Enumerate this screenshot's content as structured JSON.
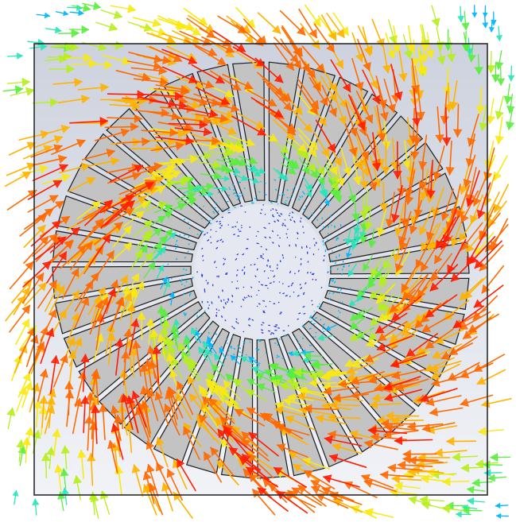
{
  "scene": {
    "description_visible_text": "",
    "domain_box": {
      "frame_stroke": "#2b2b2b",
      "gradient_top": "#cdd2de",
      "gradient_bottom": "#f1f3f7"
    },
    "hub": {
      "fill": "#e6e8f1",
      "dot_color": "#2b3fd8"
    },
    "blades": {
      "count": 36,
      "fill": "#c3c3c3",
      "stroke": "#1e1e1e"
    },
    "vector_color_scale": [
      "#0b30ff",
      "#00b7ff",
      "#27e6b8",
      "#58ee3c",
      "#b6ef1a",
      "#f9e912",
      "#ffb300",
      "#ff6a00",
      "#ff1d00"
    ]
  }
}
